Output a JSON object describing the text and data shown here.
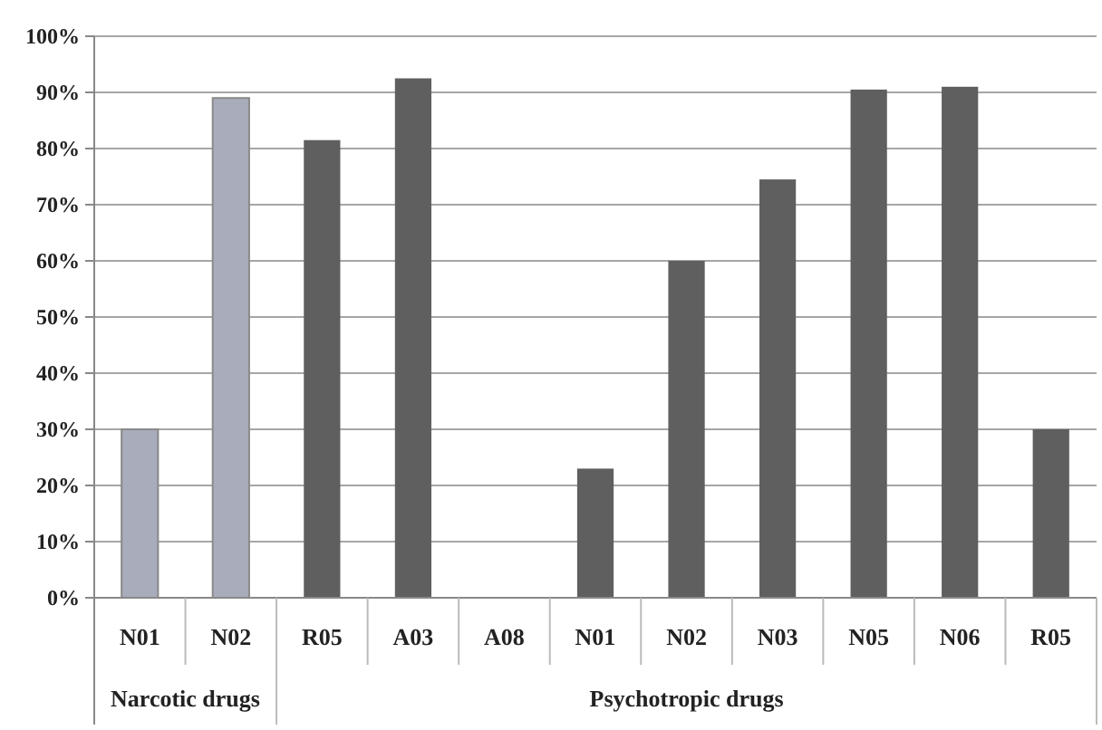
{
  "chart_data": {
    "type": "bar",
    "categories": [
      "N01",
      "N02",
      "R05",
      "A03",
      "A08",
      "N01",
      "N02",
      "N03",
      "N05",
      "N06",
      "R05"
    ],
    "values": [
      30,
      89,
      81.5,
      92.5,
      0,
      23,
      60,
      74.5,
      90.5,
      91,
      30
    ],
    "colors": [
      "#a9acba",
      "#a9acba",
      "#5f5f5f",
      "#5f5f5f",
      "#5f5f5f",
      "#5f5f5f",
      "#5f5f5f",
      "#5f5f5f",
      "#5f5f5f",
      "#5f5f5f",
      "#5f5f5f"
    ],
    "ylim": [
      0,
      100
    ],
    "yticks": [
      {
        "value": 0,
        "label": "0%"
      },
      {
        "value": 10,
        "label": "10%"
      },
      {
        "value": 20,
        "label": "20%"
      },
      {
        "value": 30,
        "label": "30%"
      },
      {
        "value": 40,
        "label": "40%"
      },
      {
        "value": 50,
        "label": "50%"
      },
      {
        "value": 60,
        "label": "60%"
      },
      {
        "value": 70,
        "label": "70%"
      },
      {
        "value": 80,
        "label": "80%"
      },
      {
        "value": 90,
        "label": "90%"
      },
      {
        "value": 100,
        "label": "100%"
      }
    ],
    "grid": "y",
    "annotations": [
      "Narcotic drugs",
      "Psychotropic drugs"
    ]
  }
}
